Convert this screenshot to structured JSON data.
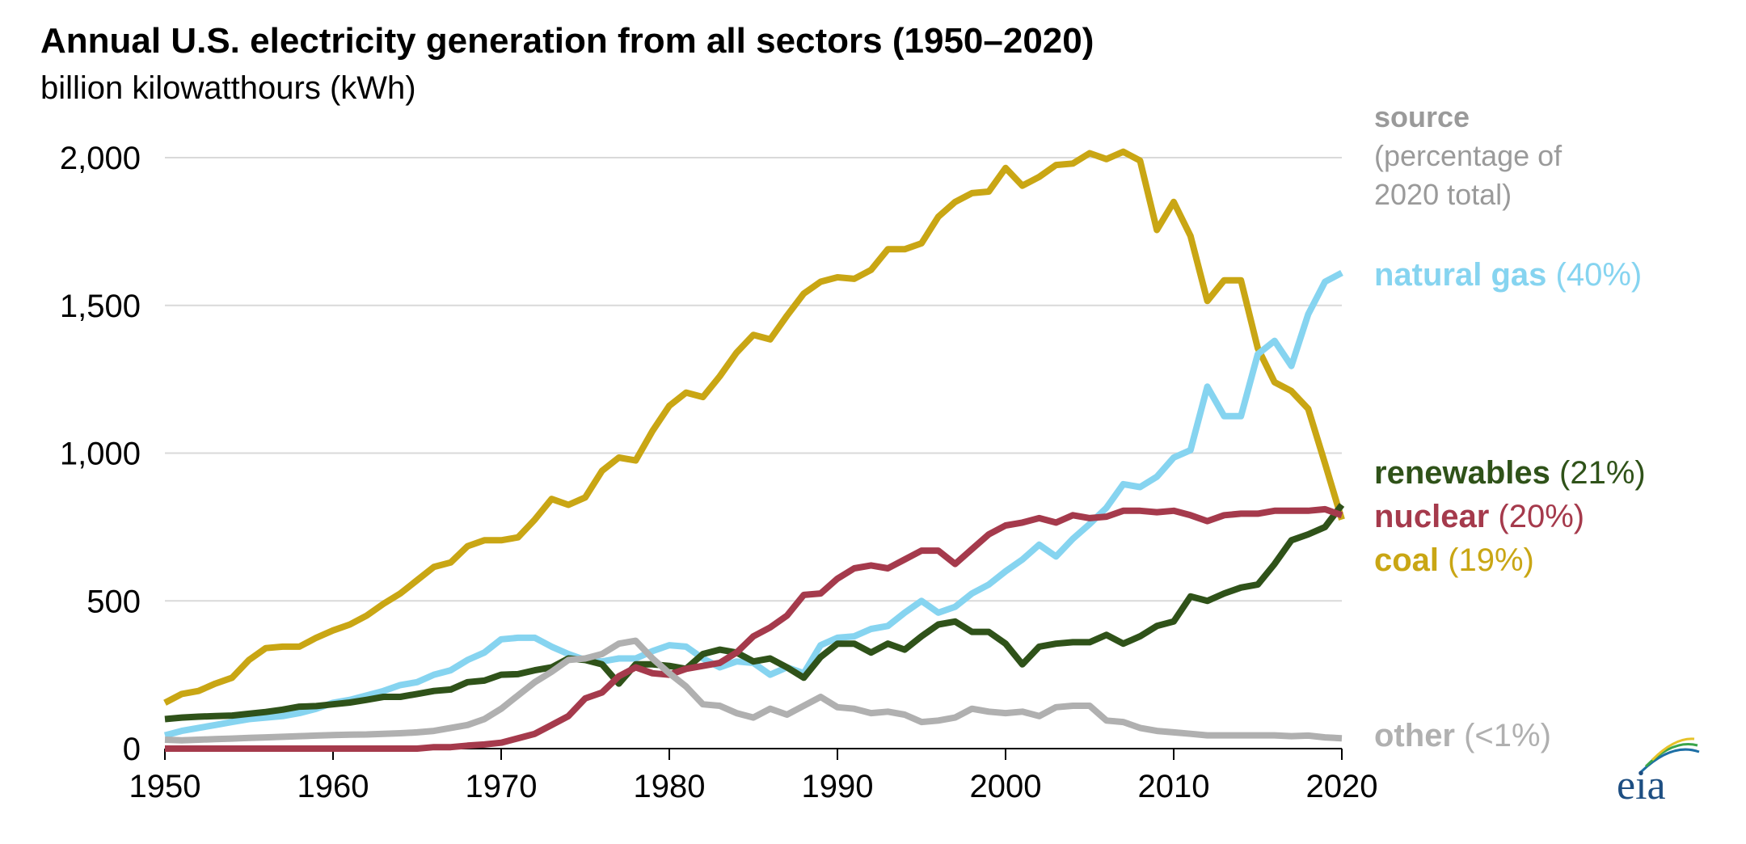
{
  "chart_data": {
    "type": "line",
    "title": "Annual U.S. electricity generation from all sectors (1950–2020)",
    "subtitle": "billion kilowatthours (kWh)",
    "xlabel": "",
    "ylabel": "",
    "xlim": [
      1950,
      2020
    ],
    "ylim": [
      0,
      2000
    ],
    "x_ticks": [
      "1950",
      "1960",
      "1970",
      "1980",
      "1990",
      "2000",
      "2010",
      "2020"
    ],
    "y_ticks": [
      "0",
      "500",
      "1,000",
      "1,500",
      "2,000"
    ],
    "grid": "horizontal",
    "legend_position": "right",
    "legend_header": [
      "source",
      "(percentage of",
      "2020 total)"
    ],
    "x": [
      1950,
      1951,
      1952,
      1953,
      1954,
      1955,
      1956,
      1957,
      1958,
      1959,
      1960,
      1961,
      1962,
      1963,
      1964,
      1965,
      1966,
      1967,
      1968,
      1969,
      1970,
      1971,
      1972,
      1973,
      1974,
      1975,
      1976,
      1977,
      1978,
      1979,
      1980,
      1981,
      1982,
      1983,
      1984,
      1985,
      1986,
      1987,
      1988,
      1989,
      1990,
      1991,
      1992,
      1993,
      1994,
      1995,
      1996,
      1997,
      1998,
      1999,
      2000,
      2001,
      2002,
      2003,
      2004,
      2005,
      2006,
      2007,
      2008,
      2009,
      2010,
      2011,
      2012,
      2013,
      2014,
      2015,
      2016,
      2017,
      2018,
      2019,
      2020
    ],
    "series": [
      {
        "name": "coal",
        "share": "(19%)",
        "color": "#c9a614",
        "values": [
          155,
          185,
          195,
          220,
          240,
          300,
          340,
          345,
          345,
          375,
          400,
          420,
          450,
          490,
          525,
          570,
          615,
          630,
          685,
          705,
          705,
          715,
          775,
          845,
          825,
          850,
          940,
          985,
          975,
          1075,
          1160,
          1205,
          1190,
          1260,
          1340,
          1400,
          1385,
          1465,
          1540,
          1580,
          1595,
          1590,
          1620,
          1690,
          1690,
          1710,
          1800,
          1850,
          1880,
          1885,
          1965,
          1905,
          1935,
          1975,
          1980,
          2015,
          1995,
          2020,
          1990,
          1755,
          1850,
          1735,
          1515,
          1585,
          1585,
          1355,
          1240,
          1210,
          1150,
          965,
          775
        ]
      },
      {
        "name": "natural gas",
        "share": "(40%)",
        "color": "#86d4f0",
        "values": [
          45,
          60,
          70,
          80,
          90,
          100,
          105,
          110,
          120,
          135,
          155,
          165,
          180,
          195,
          215,
          225,
          250,
          265,
          300,
          325,
          370,
          375,
          375,
          345,
          320,
          300,
          295,
          305,
          305,
          330,
          350,
          345,
          305,
          275,
          295,
          290,
          250,
          275,
          255,
          350,
          375,
          380,
          405,
          415,
          460,
          500,
          460,
          480,
          525,
          555,
          600,
          640,
          690,
          650,
          710,
          760,
          815,
          895,
          885,
          920,
          985,
          1010,
          1225,
          1125,
          1125,
          1335,
          1380,
          1295,
          1470,
          1580,
          1610
        ]
      },
      {
        "name": "renewables",
        "share": "(21%)",
        "color": "#2f5219",
        "values": [
          100,
          105,
          108,
          110,
          112,
          118,
          124,
          132,
          142,
          144,
          150,
          156,
          165,
          175,
          175,
          185,
          195,
          200,
          225,
          230,
          250,
          252,
          265,
          275,
          305,
          300,
          285,
          220,
          285,
          285,
          280,
          270,
          320,
          335,
          325,
          295,
          305,
          275,
          240,
          310,
          355,
          355,
          325,
          355,
          335,
          380,
          420,
          430,
          395,
          395,
          355,
          285,
          345,
          355,
          360,
          360,
          385,
          355,
          380,
          415,
          430,
          515,
          500,
          525,
          545,
          555,
          625,
          705,
          725,
          750,
          825
        ]
      },
      {
        "name": "nuclear",
        "share": "(20%)",
        "color": "#a53a4c",
        "values": [
          0,
          0,
          0,
          0,
          0,
          0,
          0,
          0,
          0,
          0,
          0,
          0,
          0,
          0,
          0,
          0,
          5,
          5,
          10,
          14,
          20,
          35,
          50,
          80,
          110,
          170,
          190,
          245,
          275,
          255,
          250,
          270,
          280,
          290,
          325,
          380,
          410,
          450,
          520,
          525,
          575,
          610,
          620,
          610,
          640,
          670,
          670,
          625,
          675,
          725,
          755,
          765,
          780,
          765,
          790,
          780,
          785,
          805,
          805,
          800,
          805,
          790,
          770,
          790,
          795,
          795,
          805,
          805,
          805,
          810,
          790
        ]
      },
      {
        "name": "other",
        "share": "(<1%)",
        "color": "#b0b0b0",
        "values": [
          30,
          28,
          30,
          32,
          34,
          36,
          38,
          40,
          42,
          44,
          46,
          47,
          48,
          50,
          52,
          55,
          60,
          70,
          80,
          100,
          135,
          180,
          225,
          260,
          300,
          305,
          320,
          355,
          365,
          305,
          255,
          210,
          150,
          145,
          120,
          105,
          135,
          115,
          145,
          175,
          140,
          135,
          120,
          125,
          115,
          90,
          95,
          105,
          135,
          125,
          120,
          125,
          110,
          140,
          145,
          145,
          95,
          90,
          70,
          60,
          55,
          50,
          45,
          45,
          45,
          45,
          45,
          42,
          44,
          38,
          35
        ]
      }
    ]
  },
  "logo_text": "eia"
}
